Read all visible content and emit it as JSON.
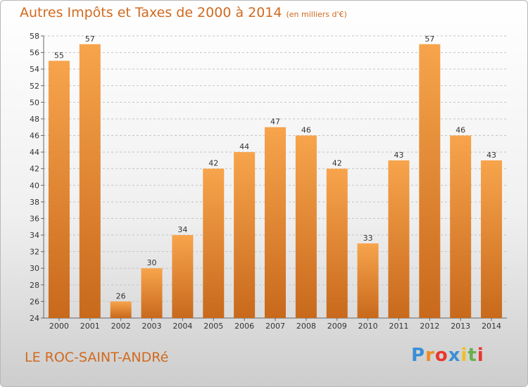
{
  "title": "Autres Impôts et Taxes de 2000 à 2014",
  "title_unit": "(en milliers d'€)",
  "place": "LE ROC-SAINT-ANDRé",
  "logo": {
    "letters": [
      "P",
      "r",
      "o",
      "x",
      "i",
      "t",
      "i"
    ],
    "colors": [
      "#3a8fd6",
      "#f08a24",
      "#e8372c",
      "#3a8fd6",
      "#f0c020",
      "#6ab04c",
      "#e8372c"
    ]
  },
  "colors": {
    "bar_light": "#f7a44c",
    "bar_dark": "#c8691c",
    "text": "#d2691e"
  },
  "chart_data": {
    "type": "bar",
    "categories": [
      "2000",
      "2001",
      "2002",
      "2003",
      "2004",
      "2005",
      "2006",
      "2007",
      "2008",
      "2009",
      "2010",
      "2011",
      "2012",
      "2013",
      "2014"
    ],
    "values": [
      55,
      57,
      26,
      30,
      34,
      42,
      44,
      47,
      46,
      42,
      33,
      43,
      57,
      46,
      43
    ],
    "ylim": [
      24,
      58
    ],
    "yticks": [
      24,
      26,
      28,
      30,
      32,
      34,
      36,
      38,
      40,
      42,
      44,
      46,
      48,
      50,
      52,
      54,
      56,
      58
    ],
    "grid": true
  }
}
